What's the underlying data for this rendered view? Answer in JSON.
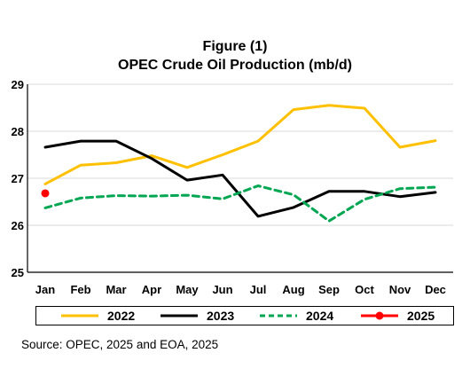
{
  "chart_data": {
    "type": "line",
    "title": "Figure (1)",
    "subtitle": "OPEC Crude Oil Production (mb/d)",
    "categories": [
      "Jan",
      "Feb",
      "Mar",
      "Apr",
      "May",
      "Jun",
      "Jul",
      "Aug",
      "Sep",
      "Oct",
      "Nov",
      "Dec"
    ],
    "ylim": [
      25,
      29
    ],
    "yticks": [
      "25",
      "26",
      "27",
      "28",
      "29"
    ],
    "grid": true,
    "legend_position": "bottom",
    "series": [
      {
        "name": "2022",
        "color": "#FFC000",
        "style": "solid",
        "values": [
          26.88,
          27.28,
          27.33,
          27.48,
          27.23,
          27.5,
          27.79,
          28.46,
          28.55,
          28.49,
          27.66,
          27.8
        ]
      },
      {
        "name": "2023",
        "color": "#000000",
        "style": "solid",
        "values": [
          27.66,
          27.79,
          27.79,
          27.42,
          26.96,
          27.07,
          26.19,
          26.38,
          26.72,
          26.72,
          26.61,
          26.7
        ]
      },
      {
        "name": "2024",
        "color": "#00A651",
        "style": "dashed",
        "values": [
          26.37,
          26.58,
          26.63,
          26.62,
          26.64,
          26.56,
          26.84,
          26.65,
          26.09,
          26.55,
          26.78,
          26.81
        ]
      },
      {
        "name": "2025",
        "color": "#FF0000",
        "style": "marker",
        "values": [
          26.68,
          null,
          null,
          null,
          null,
          null,
          null,
          null,
          null,
          null,
          null,
          null
        ]
      }
    ]
  },
  "source": "Source: OPEC, 2025 and EOA, 2025"
}
